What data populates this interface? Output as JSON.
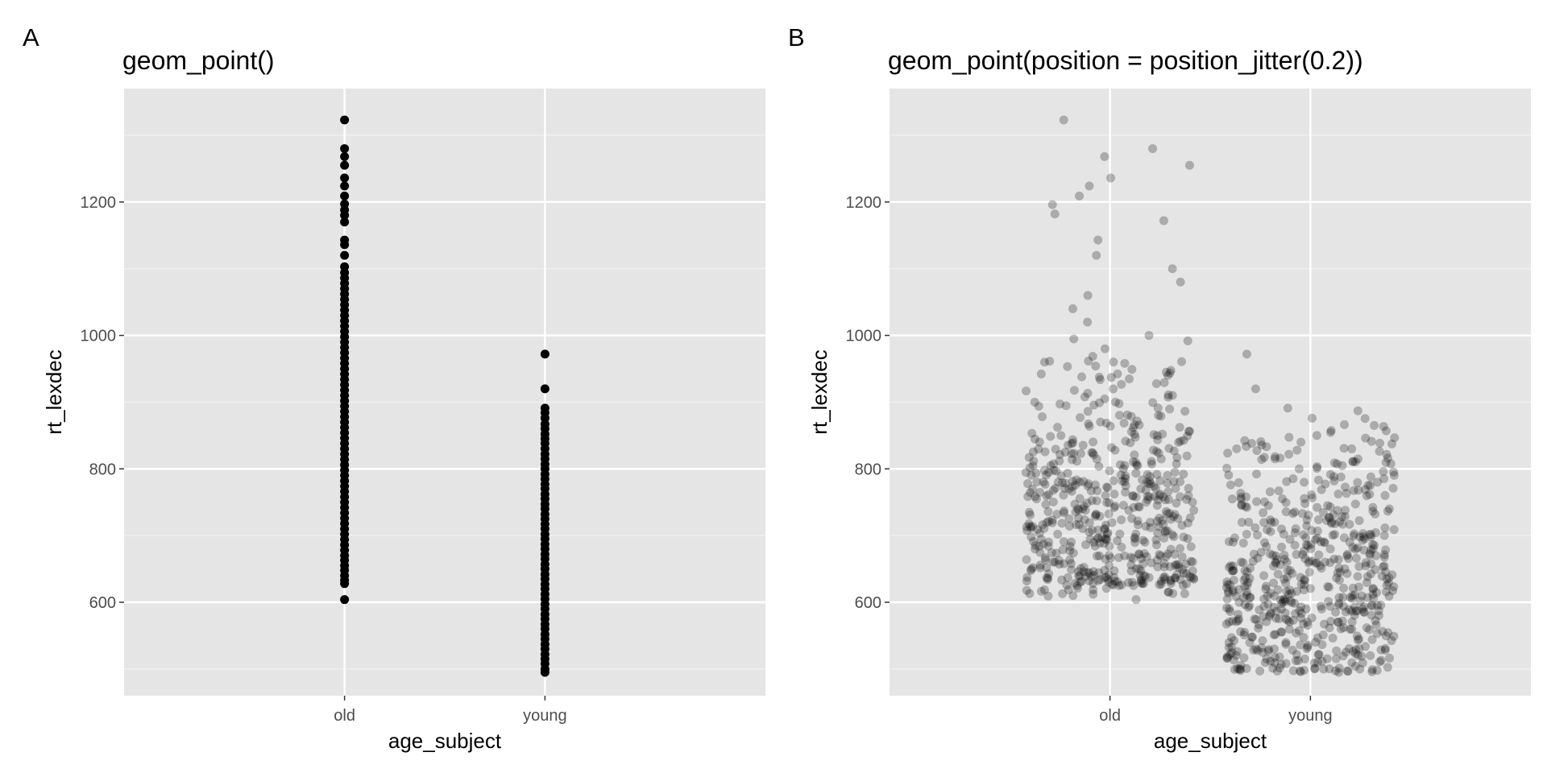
{
  "chart_data": [
    {
      "panel_tag": "A",
      "type": "scatter",
      "title": "geom_point()",
      "xlabel": "age_subject",
      "ylabel": "rt_lexdec",
      "categories": [
        "old",
        "young"
      ],
      "yticks": [
        600,
        800,
        1000,
        1200
      ],
      "ylim": [
        460,
        1370
      ],
      "grid": true,
      "jitter": 0,
      "point_alpha": 1,
      "series": [
        {
          "category": "old",
          "values": [
            604,
            628,
            633,
            640,
            648,
            655,
            663,
            670,
            678,
            686,
            694,
            702,
            710,
            718,
            726,
            734,
            742,
            750,
            758,
            766,
            774,
            782,
            790,
            798,
            806,
            814,
            822,
            830,
            838,
            846,
            854,
            862,
            870,
            878,
            886,
            894,
            902,
            910,
            918,
            926,
            934,
            942,
            950,
            958,
            966,
            974,
            982,
            990,
            998,
            1006,
            1014,
            1022,
            1030,
            1038,
            1046,
            1054,
            1062,
            1070,
            1078,
            1086,
            1094,
            1103,
            1120,
            1136,
            1143,
            1170,
            1180,
            1188,
            1197,
            1209,
            1224,
            1236,
            1255,
            1268,
            1280,
            1323
          ]
        },
        {
          "category": "young",
          "values": [
            495,
            500,
            508,
            515,
            522,
            530,
            537,
            545,
            552,
            560,
            567,
            575,
            582,
            590,
            597,
            605,
            612,
            620,
            627,
            635,
            642,
            650,
            657,
            665,
            672,
            680,
            687,
            695,
            702,
            710,
            717,
            725,
            732,
            740,
            747,
            755,
            762,
            770,
            777,
            785,
            792,
            800,
            807,
            815,
            822,
            830,
            838,
            845,
            852,
            860,
            867,
            876,
            884,
            891,
            920,
            972
          ]
        }
      ]
    },
    {
      "panel_tag": "B",
      "type": "scatter",
      "title": "geom_point(position = position_jitter(0.2))",
      "xlabel": "age_subject",
      "ylabel": "rt_lexdec",
      "categories": [
        "old",
        "young"
      ],
      "yticks": [
        600,
        800,
        1000,
        1200
      ],
      "ylim": [
        460,
        1370
      ],
      "grid": true,
      "jitter": 0.2,
      "point_alpha": 0.25,
      "series": [
        {
          "category": "old",
          "values": [
            604,
            625,
            630,
            636,
            640,
            650,
            660,
            672,
            690,
            705,
            720,
            740,
            760,
            780,
            800,
            825,
            850,
            880,
            910,
            940,
            960,
            980,
            1000,
            1020,
            1040,
            1060,
            1080,
            1100,
            1120,
            1143,
            1172,
            1182,
            1196,
            1209,
            1224,
            1236,
            1255,
            1268,
            1280,
            1323
          ]
        },
        {
          "category": "young",
          "values": [
            495,
            500,
            510,
            520,
            530,
            545,
            560,
            575,
            590,
            605,
            620,
            640,
            660,
            680,
            700,
            720,
            740,
            760,
            780,
            800,
            815,
            830,
            840,
            850,
            865,
            876,
            887,
            891,
            920,
            972
          ]
        }
      ]
    }
  ]
}
